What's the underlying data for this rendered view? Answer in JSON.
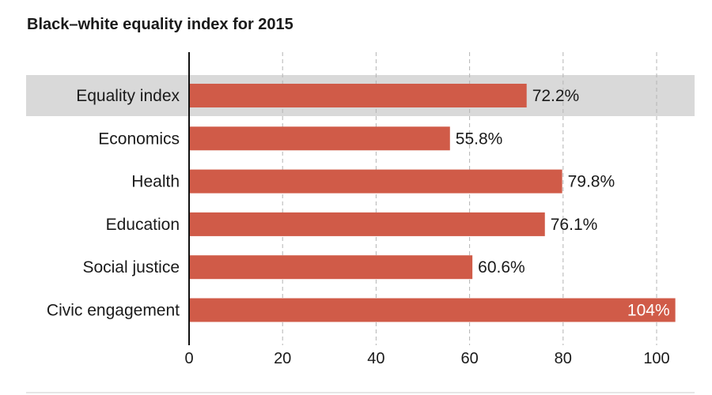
{
  "chart_data": {
    "type": "bar",
    "orientation": "horizontal",
    "title": "Black–white equality index for 2015",
    "categories": [
      "Equality index",
      "Economics",
      "Health",
      "Education",
      "Social justice",
      "Civic engagement"
    ],
    "values": [
      72.2,
      55.8,
      79.8,
      76.1,
      60.6,
      104
    ],
    "value_labels": [
      "72.2%",
      "55.8%",
      "79.8%",
      "76.1%",
      "60.6%",
      "104%"
    ],
    "highlighted_category": "Equality index",
    "xlim": [
      0,
      105
    ],
    "xticks": [
      0,
      20,
      40,
      60,
      80,
      100
    ],
    "xtick_labels": [
      "0",
      "20",
      "40",
      "60",
      "80",
      "100"
    ],
    "grid": "vertical dashed",
    "colors": {
      "bar": "#d05b48",
      "highlight_band": "#d9d9d9",
      "grid": "#b5b5b5",
      "axis": "#111111",
      "inside_label": "#ffffff"
    }
  }
}
